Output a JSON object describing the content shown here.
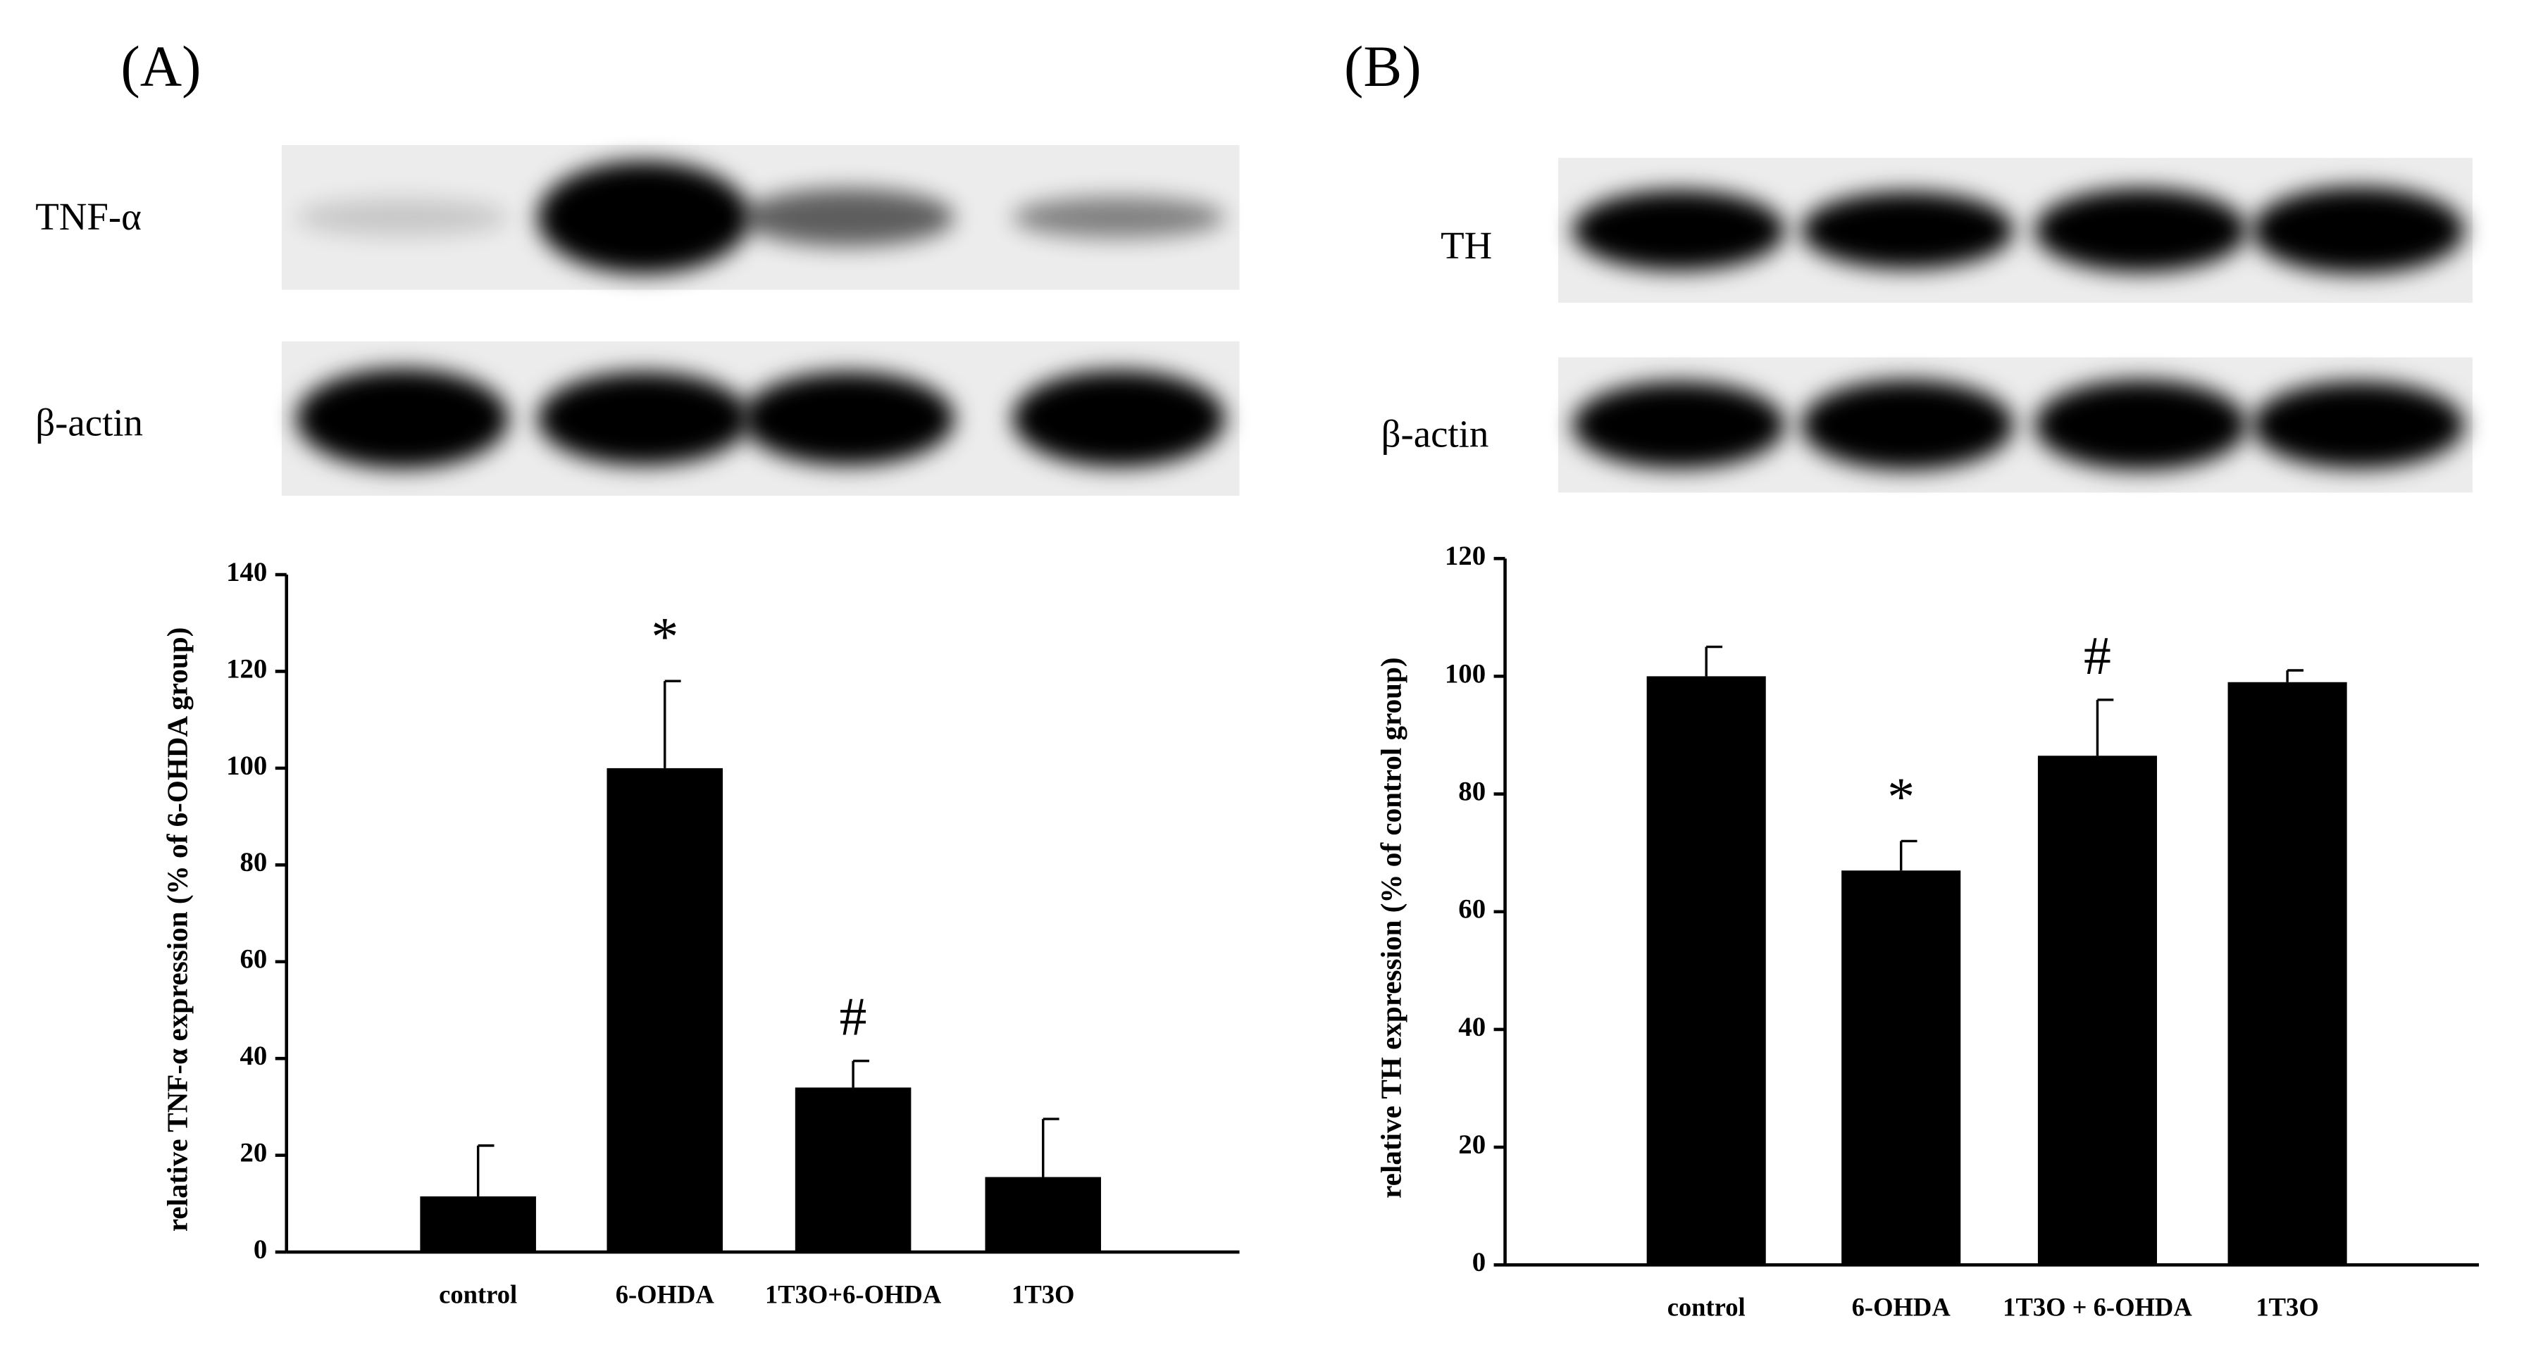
{
  "chart_data": [
    {
      "type": "bar",
      "panel_label": "(A)",
      "blots": [
        {
          "label": "TNF-α"
        },
        {
          "label": "β-actin"
        }
      ],
      "y_label": "relative TNF-α expression (% of 6-OHDA group)",
      "categories": [
        "control",
        "6-OHDA",
        "1T3O+6-OHDA",
        "1T3O"
      ],
      "values": [
        11.5,
        100,
        34,
        15.5
      ],
      "errors": [
        10.5,
        18,
        5.5,
        12
      ],
      "markers": [
        null,
        "*",
        "#",
        null
      ],
      "color": "#000000",
      "ylim": [
        0,
        140
      ],
      "yticks": [
        0,
        20,
        40,
        60,
        80,
        100,
        120,
        140
      ]
    },
    {
      "type": "bar",
      "panel_label": "(B)",
      "blots": [
        {
          "label": "TH"
        },
        {
          "label": "β-actin"
        }
      ],
      "y_label": "relative TH expression (% of control group)",
      "categories": [
        "control",
        "6-OHDA",
        "1T3O + 6-OHDA",
        "1T3O"
      ],
      "values": [
        100,
        67,
        86.5,
        99
      ],
      "errors": [
        5,
        5,
        9.5,
        2
      ],
      "markers": [
        null,
        "*",
        "#",
        null
      ],
      "color": "#000000",
      "ylim": [
        0,
        120
      ],
      "yticks": [
        0,
        20,
        40,
        60,
        80,
        100,
        120
      ]
    }
  ]
}
